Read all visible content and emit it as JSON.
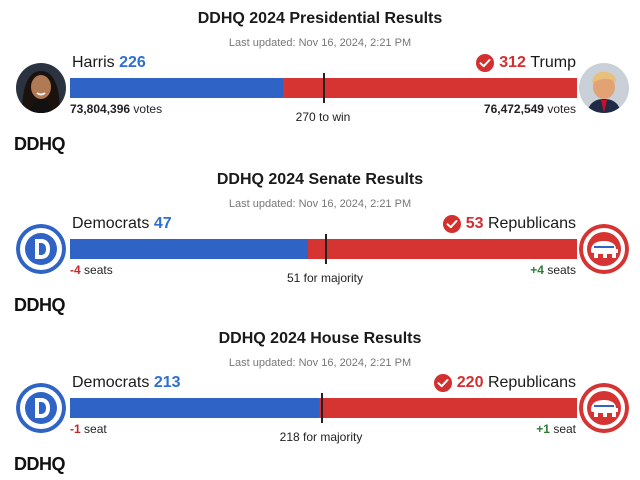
{
  "colors": {
    "dem_blue": "#2f63c6",
    "rep_red": "#d63333",
    "win_check": "#d32f2f"
  },
  "sections": [
    {
      "title": "DDHQ 2024 Presidential Results",
      "updated": "Last updated: Nov 16, 2024, 2:21 PM",
      "left": {
        "name": "Harris",
        "count": "226",
        "sub_value": "73,804,396",
        "sub_label": "votes",
        "avatar_icon": "harris-portrait"
      },
      "right": {
        "name": "Trump",
        "count": "312",
        "sub_value": "76,472,549",
        "sub_label": "votes",
        "winner": true,
        "avatar_icon": "trump-portrait"
      },
      "threshold": "270 to win",
      "total": 538,
      "left_value": 226,
      "threshold_value": 270,
      "logo": "DDHQ"
    },
    {
      "title": "DDHQ 2024 Senate Results",
      "updated": "Last updated: Nov 16, 2024, 2:21 PM",
      "left": {
        "name": "Democrats",
        "count": "47",
        "change": "-4",
        "change_label": "seats",
        "avatar_icon": "democrat-logo-icon"
      },
      "right": {
        "name": "Republicans",
        "count": "53",
        "change": "+4",
        "change_label": "seats",
        "winner": true,
        "avatar_icon": "republican-elephant-icon"
      },
      "threshold": "51 for majority",
      "total": 100,
      "left_value": 47,
      "threshold_value": 51,
      "logo": "DDHQ"
    },
    {
      "title": "DDHQ 2024 House Results",
      "updated": "Last updated: Nov 16, 2024, 2:21 PM",
      "left": {
        "name": "Democrats",
        "count": "213",
        "change": "-1",
        "change_label": "seat",
        "avatar_icon": "democrat-logo-icon"
      },
      "right": {
        "name": "Republicans",
        "count": "220",
        "change": "+1",
        "change_label": "seat",
        "winner": true,
        "avatar_icon": "republican-elephant-icon"
      },
      "threshold": "218 for majority",
      "total": 433,
      "left_value": 213,
      "threshold_value": 218,
      "logo": "DDHQ"
    }
  ]
}
